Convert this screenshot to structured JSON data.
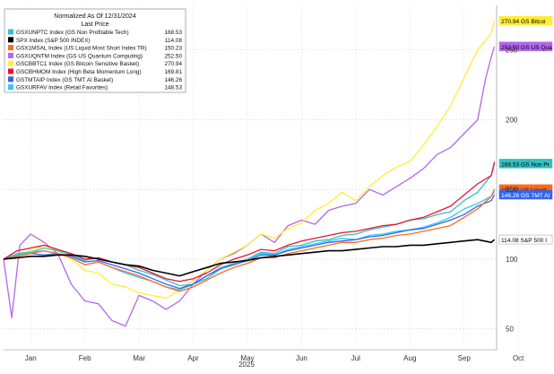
{
  "chart_data": {
    "type": "line",
    "x_months": [
      "Jan",
      "Feb",
      "Mar",
      "Apr",
      "May",
      "Jun",
      "Jul",
      "Aug",
      "Sep",
      "Oct"
    ],
    "x_year": "2025",
    "y_ticks": [
      50,
      100,
      150,
      200,
      250
    ],
    "ylim": [
      35,
      282
    ],
    "xlim": [
      0,
      9.1
    ],
    "legend": {
      "title": "Normalized As Of 12/31/2024",
      "subtitle": "Last Price",
      "placement": "top-left"
    },
    "colors": {
      "gsxunptc": "#33c2c2",
      "spx": "#000000",
      "gsx1msal": "#ff6a1a",
      "gsxuqntm": "#b366ee",
      "gscbbtc1": "#ffee33",
      "gscbhmom": "#ee1133",
      "gstmtaip": "#3366ee",
      "gsxurfav": "#33c8f5"
    },
    "series": [
      {
        "key": "gsxunptc",
        "name": "GSXUNPTC Index (GS Non Profitable Tech)",
        "last": "168.53",
        "tag": "168.53 GS Non Pr",
        "tag_bg": "#33c2c2",
        "tag_fg": "#000000",
        "x": [
          0,
          0.25,
          0.5,
          0.75,
          1,
          1.25,
          1.5,
          1.75,
          2,
          2.25,
          2.5,
          2.75,
          3,
          3.25,
          3.5,
          3.75,
          4,
          4.25,
          4.5,
          4.75,
          5,
          5.25,
          5.5,
          5.75,
          6,
          6.25,
          6.5,
          6.75,
          7,
          7.25,
          7.5,
          7.75,
          8,
          8.25,
          8.5,
          8.75,
          9,
          9.06
        ],
        "y": [
          100,
          103,
          105,
          108,
          106,
          103,
          99,
          101,
          98,
          96,
          92,
          89,
          85,
          81,
          82,
          86,
          93,
          97,
          100,
          105,
          104,
          109,
          110,
          113,
          114,
          117,
          118,
          121,
          123,
          125,
          128,
          129,
          132,
          134,
          142,
          148,
          160,
          168.53
        ]
      },
      {
        "key": "spx",
        "name": "SPX Index (S&P 500 INDEX)",
        "last": "114.08",
        "tag": "114.08 S&P 500 I",
        "tag_bg": "#ffffff",
        "tag_fg": "#000000",
        "x": [
          0,
          0.25,
          0.5,
          0.75,
          1,
          1.25,
          1.5,
          1.75,
          2,
          2.25,
          2.5,
          2.75,
          3,
          3.25,
          3.5,
          3.75,
          4,
          4.25,
          4.5,
          4.75,
          5,
          5.25,
          5.5,
          5.75,
          6,
          6.25,
          6.5,
          6.75,
          7,
          7.25,
          7.5,
          7.75,
          8,
          8.25,
          8.5,
          8.75,
          9,
          9.06
        ],
        "y": [
          100,
          101,
          102,
          102,
          103,
          103,
          102,
          100,
          98,
          96,
          95,
          92,
          90,
          88,
          91,
          94,
          97,
          98,
          99,
          101,
          102,
          103,
          104,
          105,
          106,
          106,
          107,
          108,
          109,
          109,
          110,
          110,
          111,
          112,
          113,
          114,
          112,
          114.08
        ]
      },
      {
        "key": "gsx1msal",
        "name": "GSX1MSAL Index (US Liquid Most Short Index TR)",
        "last": "150.23",
        "tag": "150.23 US Liquid",
        "tag_bg": "#ff6a1a",
        "tag_fg": "#000000",
        "x": [
          0,
          0.25,
          0.5,
          0.75,
          1,
          1.25,
          1.5,
          1.75,
          2,
          2.25,
          2.5,
          2.75,
          3,
          3.25,
          3.5,
          3.75,
          4,
          4.25,
          4.5,
          4.75,
          5,
          5.25,
          5.5,
          5.75,
          6,
          6.25,
          6.5,
          6.75,
          7,
          7.25,
          7.5,
          7.75,
          8,
          8.25,
          8.5,
          8.75,
          9,
          9.06
        ],
        "y": [
          100,
          102,
          104,
          106,
          104,
          101,
          96,
          98,
          94,
          91,
          88,
          84,
          80,
          77,
          80,
          85,
          90,
          94,
          97,
          101,
          101,
          104,
          106,
          108,
          110,
          112,
          112,
          114,
          115,
          117,
          118,
          120,
          122,
          124,
          130,
          136,
          145,
          150.23
        ]
      },
      {
        "key": "gsxuqntm",
        "name": "GSXUQNTM Index (GS US Quantum Computing)",
        "last": "252.50",
        "tag": "252.50 GS US Qua",
        "tag_bg": "#b366ee",
        "tag_fg": "#000000",
        "x": [
          0,
          0.15,
          0.3,
          0.5,
          0.75,
          1,
          1.25,
          1.5,
          1.75,
          2,
          2.25,
          2.5,
          2.75,
          3,
          3.25,
          3.5,
          3.75,
          4,
          4.25,
          4.5,
          4.75,
          5,
          5.25,
          5.5,
          5.75,
          6,
          6.25,
          6.5,
          6.75,
          7,
          7.25,
          7.5,
          7.75,
          8,
          8.25,
          8.5,
          8.75,
          8.9,
          9,
          9.06
        ],
        "y": [
          100,
          58,
          110,
          118,
          112,
          104,
          82,
          70,
          68,
          56,
          52,
          74,
          70,
          64,
          70,
          82,
          92,
          100,
          104,
          110,
          118,
          112,
          124,
          128,
          125,
          135,
          138,
          140,
          150,
          146,
          152,
          158,
          165,
          175,
          180,
          190,
          200,
          230,
          245,
          252.5
        ]
      },
      {
        "key": "gscbbtc1",
        "name": "GSCBBTC1 Index (GS Bitcoin Sensitive Basket)",
        "last": "270.94",
        "tag": "270.94 GS Bitcoi",
        "tag_bg": "#ffee33",
        "tag_fg": "#000000",
        "x": [
          0,
          0.25,
          0.5,
          0.75,
          1,
          1.25,
          1.5,
          1.75,
          2,
          2.25,
          2.5,
          2.75,
          3,
          3.25,
          3.5,
          3.75,
          4,
          4.25,
          4.5,
          4.75,
          5,
          5.25,
          5.5,
          5.75,
          6,
          6.25,
          6.5,
          6.75,
          7,
          7.25,
          7.5,
          7.75,
          8,
          8.25,
          8.5,
          8.75,
          9,
          9.06
        ],
        "y": [
          100,
          104,
          106,
          110,
          106,
          100,
          92,
          90,
          82,
          80,
          76,
          74,
          72,
          78,
          85,
          92,
          100,
          105,
          110,
          118,
          115,
          122,
          126,
          135,
          140,
          148,
          142,
          152,
          160,
          166,
          170,
          182,
          195,
          210,
          230,
          250,
          262,
          270.94
        ]
      },
      {
        "key": "gscbhmom",
        "name": "GSCBHMOM Index (High Beta Momentum Long)",
        "last": "169.81",
        "tag": "",
        "tag_bg": "#ee1133",
        "tag_fg": "#000000",
        "x": [
          0,
          0.25,
          0.5,
          0.75,
          1,
          1.25,
          1.5,
          1.75,
          2,
          2.25,
          2.5,
          2.75,
          3,
          3.25,
          3.5,
          3.75,
          4,
          4.25,
          4.5,
          4.75,
          5,
          5.25,
          5.5,
          5.75,
          6,
          6.25,
          6.5,
          6.75,
          7,
          7.25,
          7.5,
          7.75,
          8,
          8.25,
          8.5,
          8.75,
          9,
          9.06
        ],
        "y": [
          100,
          106,
          108,
          110,
          107,
          104,
          100,
          101,
          98,
          96,
          94,
          90,
          86,
          84,
          86,
          90,
          96,
          100,
          103,
          107,
          106,
          110,
          113,
          115,
          117,
          119,
          120,
          122,
          124,
          125,
          128,
          130,
          134,
          138,
          146,
          154,
          160,
          169.81
        ]
      },
      {
        "key": "gstmtaip",
        "name": "GSTMTAIP Index (GS TMT AI Basket)",
        "last": "146.26",
        "tag": "146.26 GS TMT AI",
        "tag_bg": "#3366ee",
        "tag_fg": "#ffffff",
        "x": [
          0,
          0.25,
          0.5,
          0.75,
          1,
          1.25,
          1.5,
          1.75,
          2,
          2.25,
          2.5,
          2.75,
          3,
          3.25,
          3.5,
          3.75,
          4,
          4.25,
          4.5,
          4.75,
          5,
          5.25,
          5.5,
          5.75,
          6,
          6.25,
          6.5,
          6.75,
          7,
          7.25,
          7.5,
          7.75,
          8,
          8.25,
          8.5,
          8.75,
          9,
          9.06
        ],
        "y": [
          100,
          102,
          104,
          103,
          104,
          102,
          98,
          99,
          96,
          93,
          90,
          86,
          82,
          79,
          82,
          88,
          93,
          96,
          99,
          103,
          103,
          106,
          108,
          110,
          112,
          113,
          114,
          116,
          117,
          119,
          121,
          122,
          125,
          128,
          132,
          138,
          142,
          146.26
        ]
      },
      {
        "key": "gsxurfav",
        "name": "GSXURFAV Index (Retail Favorites)",
        "last": "148.53",
        "tag": "",
        "tag_bg": "#33c8f5",
        "tag_fg": "#000000",
        "x": [
          0,
          0.25,
          0.5,
          0.75,
          1,
          1.25,
          1.5,
          1.75,
          2,
          2.25,
          2.5,
          2.75,
          3,
          3.25,
          3.5,
          3.75,
          4,
          4.25,
          4.5,
          4.75,
          5,
          5.25,
          5.5,
          5.75,
          6,
          6.25,
          6.5,
          6.75,
          7,
          7.25,
          7.5,
          7.75,
          8,
          8.25,
          8.5,
          8.75,
          9,
          9.06
        ],
        "y": [
          100,
          104,
          105,
          106,
          104,
          101,
          96,
          98,
          94,
          90,
          87,
          84,
          80,
          78,
          82,
          88,
          94,
          97,
          100,
          104,
          103,
          107,
          109,
          111,
          113,
          115,
          114,
          117,
          118,
          120,
          121,
          123,
          126,
          130,
          136,
          140,
          145,
          148.53
        ]
      }
    ]
  }
}
